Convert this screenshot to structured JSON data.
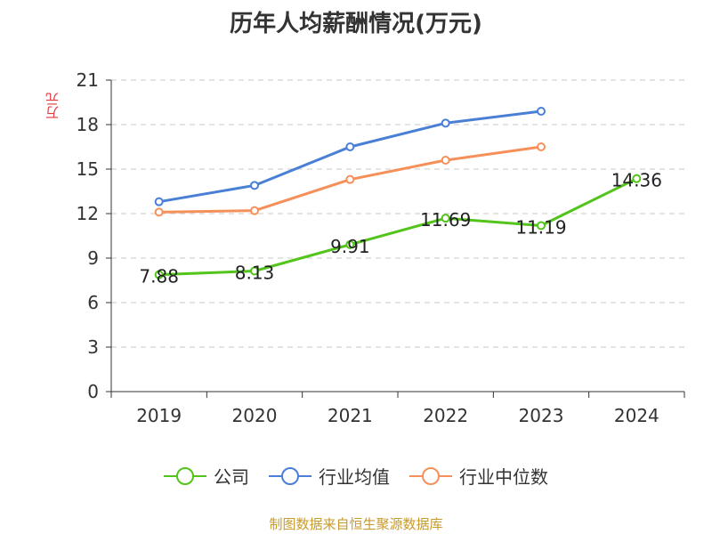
{
  "chart_data": {
    "type": "line",
    "title": "历年人均薪酬情况(万元)",
    "ylabel": "万元",
    "xlabel": "",
    "categories": [
      "2019",
      "2020",
      "2021",
      "2022",
      "2023",
      "2024"
    ],
    "ylim": [
      0,
      21
    ],
    "yticks": [
      0,
      3,
      6,
      9,
      12,
      15,
      18,
      21
    ],
    "grid": true,
    "legend_position": "bottom",
    "series": [
      {
        "name": "公司",
        "color": "#52c41a",
        "values": [
          7.88,
          8.13,
          9.91,
          11.69,
          11.19,
          14.36
        ],
        "labels": [
          "7.88",
          "8.13",
          "9.91",
          "11.69",
          "11.19",
          "14.36"
        ]
      },
      {
        "name": "行业均值",
        "color": "#4a7fd6",
        "values": [
          12.8,
          13.9,
          16.5,
          18.1,
          18.9,
          null
        ]
      },
      {
        "name": "行业中位数",
        "color": "#f6905a",
        "values": [
          12.1,
          12.2,
          14.3,
          15.6,
          16.5,
          null
        ]
      }
    ]
  },
  "source_note": "制图数据来自恒生聚源数据库"
}
